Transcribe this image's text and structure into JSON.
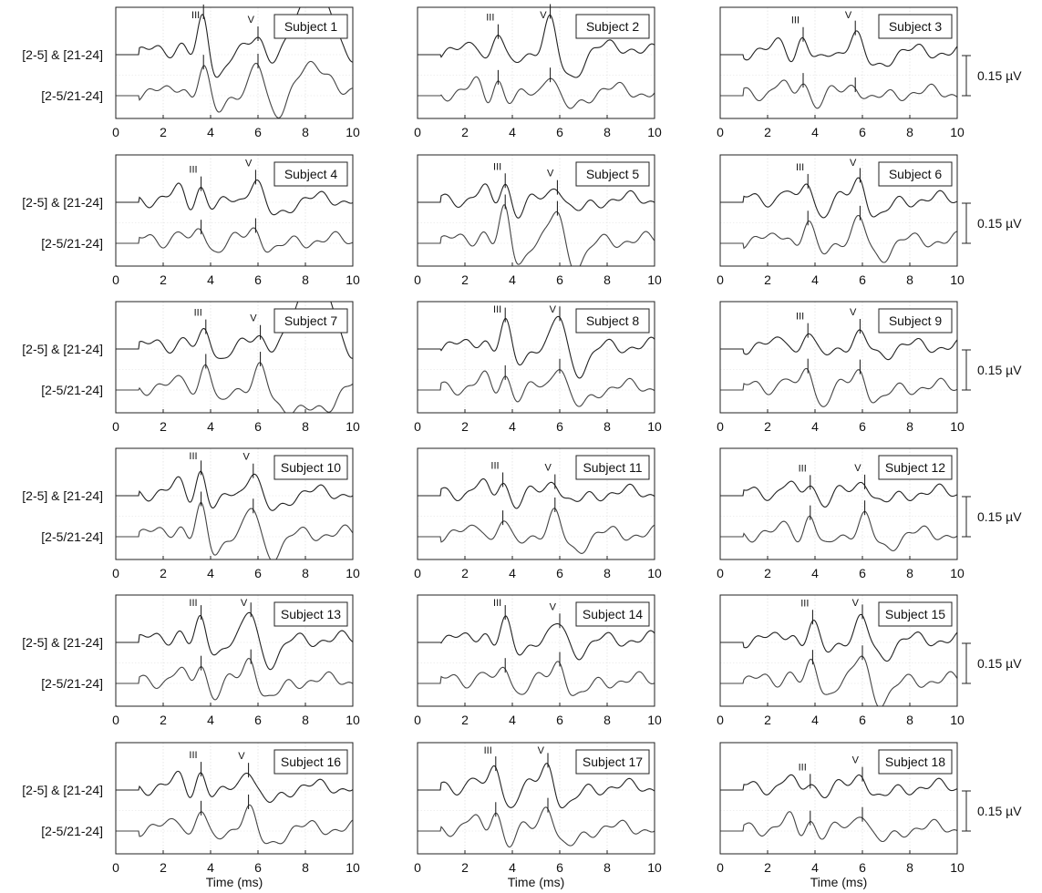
{
  "figure": {
    "row_labels": [
      "[2-5] & [21-24]",
      "[2-5/21-24]"
    ],
    "scale_bar_label": "0.15 µV",
    "xlabel": "Time (ms)",
    "peak_labels": [
      "III",
      "V"
    ]
  },
  "chart_data": {
    "type": "line",
    "description_units": "x in ms, y in µV relative to each trace baseline",
    "xlim": [
      0,
      10
    ],
    "xticks": [
      0,
      2,
      4,
      6,
      8,
      10
    ],
    "grid": true,
    "legend": "none",
    "trace_colors": [
      "#222222",
      "#444444"
    ],
    "panels": [
      {
        "title": "Subject 1",
        "III": 3.7,
        "V": 6.0,
        "a3": 0.13,
        "a5": 0.05,
        "b3": 0.1,
        "b5": 0.11,
        "drift": 0.22,
        "driftB": 0.1,
        "seed": 1
      },
      {
        "title": "Subject 2",
        "III": 3.4,
        "V": 5.6,
        "a3": 0.08,
        "a5": 0.13,
        "b3": 0.06,
        "b5": 0.09,
        "drift": 0.02,
        "driftB": 0.01,
        "seed": 2
      },
      {
        "title": "Subject 3",
        "III": 3.5,
        "V": 5.7,
        "a3": 0.07,
        "a5": 0.08,
        "b3": 0.06,
        "b5": 0.04,
        "drift": 0.0,
        "driftB": 0.0,
        "seed": 3
      },
      {
        "title": "Subject 4",
        "III": 3.6,
        "V": 5.9,
        "a3": 0.06,
        "a5": 0.09,
        "b3": 0.05,
        "b5": 0.05,
        "drift": 0.0,
        "driftB": 0.0,
        "seed": 4
      },
      {
        "title": "Subject 5",
        "III": 3.7,
        "V": 5.9,
        "a3": 0.08,
        "a5": 0.07,
        "b3": 0.12,
        "b5": 0.12,
        "drift": 0.0,
        "driftB": 0.0,
        "seed": 5
      },
      {
        "title": "Subject 6",
        "III": 3.7,
        "V": 5.9,
        "a3": 0.08,
        "a5": 0.09,
        "b3": 0.07,
        "b5": 0.08,
        "drift": 0.0,
        "driftB": 0.0,
        "seed": 6
      },
      {
        "title": "Subject 7",
        "III": 3.8,
        "V": 6.1,
        "a3": 0.06,
        "a5": 0.03,
        "b3": 0.11,
        "b5": 0.08,
        "drift": 0.25,
        "driftB": -0.1,
        "seed": 7
      },
      {
        "title": "Subject 8",
        "III": 3.7,
        "V": 6.0,
        "a3": 0.09,
        "a5": 0.12,
        "b3": 0.06,
        "b5": 0.11,
        "drift": 0.0,
        "driftB": 0.0,
        "seed": 8
      },
      {
        "title": "Subject 9",
        "III": 3.7,
        "V": 5.9,
        "a3": 0.06,
        "a5": 0.04,
        "b3": 0.09,
        "b5": 0.07,
        "drift": 0.0,
        "driftB": 0.0,
        "seed": 9
      },
      {
        "title": "Subject 10",
        "III": 3.6,
        "V": 5.8,
        "a3": 0.1,
        "a5": 0.1,
        "b3": 0.1,
        "b5": 0.1,
        "drift": 0.0,
        "driftB": 0.0,
        "seed": 10
      },
      {
        "title": "Subject 11",
        "III": 3.6,
        "V": 5.8,
        "a3": 0.06,
        "a5": 0.06,
        "b3": 0.06,
        "b5": 0.08,
        "drift": 0.0,
        "driftB": 0.0,
        "seed": 11
      },
      {
        "title": "Subject 12",
        "III": 3.8,
        "V": 6.1,
        "a3": 0.05,
        "a5": 0.06,
        "b3": 0.09,
        "b5": 0.07,
        "drift": 0.0,
        "driftB": 0.0,
        "seed": 12
      },
      {
        "title": "Subject 13",
        "III": 3.6,
        "V": 5.7,
        "a3": 0.07,
        "a5": 0.11,
        "b3": 0.08,
        "b5": 0.1,
        "drift": 0.0,
        "driftB": 0.0,
        "seed": 13
      },
      {
        "title": "Subject 14",
        "III": 3.7,
        "V": 6.0,
        "a3": 0.07,
        "a5": 0.06,
        "b3": 0.06,
        "b5": 0.08,
        "drift": 0.0,
        "driftB": 0.0,
        "seed": 14
      },
      {
        "title": "Subject 15",
        "III": 3.9,
        "V": 6.0,
        "a3": 0.06,
        "a5": 0.08,
        "b3": 0.07,
        "b5": 0.1,
        "drift": 0.0,
        "driftB": 0.0,
        "seed": 15
      },
      {
        "title": "Subject 16",
        "III": 3.6,
        "V": 5.6,
        "a3": 0.07,
        "a5": 0.09,
        "b3": 0.08,
        "b5": 0.09,
        "drift": 0.0,
        "driftB": 0.0,
        "seed": 16
      },
      {
        "title": "Subject 17",
        "III": 3.3,
        "V": 5.5,
        "a3": 0.1,
        "a5": 0.1,
        "b3": 0.09,
        "b5": 0.11,
        "drift": 0.0,
        "driftB": 0.0,
        "seed": 17
      },
      {
        "title": "Subject 18",
        "III": 3.8,
        "V": 6.0,
        "a3": 0.03,
        "a5": 0.06,
        "b3": 0.04,
        "b5": 0.08,
        "drift": 0.0,
        "driftB": 0.0,
        "seed": 18
      }
    ]
  }
}
